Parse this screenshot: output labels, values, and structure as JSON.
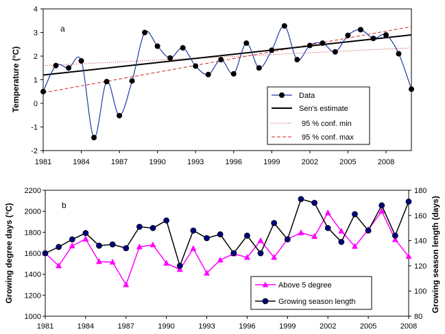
{
  "chart_data": [
    {
      "panel_label": "a",
      "type": "line",
      "ylabel": "Temperature (°C)",
      "xlim": [
        1981,
        2010
      ],
      "ylim": [
        -2,
        4
      ],
      "x_ticks": [
        1981,
        1984,
        1987,
        1990,
        1993,
        1996,
        1999,
        2002,
        2005,
        2008
      ],
      "y_ticks": [
        -2,
        -1,
        0,
        1,
        2,
        3,
        4
      ],
      "legend": "lower-right",
      "grid": false,
      "series": [
        {
          "name": "Data",
          "color": "#1f3a9e",
          "marker": "circle",
          "x": [
            1981,
            1982,
            1983,
            1984,
            1985,
            1986,
            1987,
            1988,
            1989,
            1990,
            1991,
            1992,
            1993,
            1994,
            1995,
            1996,
            1997,
            1998,
            1999,
            2000,
            2001,
            2002,
            2003,
            2004,
            2005,
            2006,
            2007,
            2008,
            2009,
            2010
          ],
          "y": [
            0.5,
            1.6,
            1.5,
            1.8,
            -1.45,
            0.92,
            -0.52,
            0.95,
            3.0,
            2.42,
            1.92,
            2.35,
            1.58,
            1.22,
            1.85,
            1.25,
            2.55,
            1.5,
            2.25,
            3.28,
            1.85,
            2.45,
            2.55,
            2.18,
            2.88,
            3.12,
            2.75,
            2.9,
            2.1,
            0.6
          ]
        },
        {
          "name": "Sen's estimate",
          "color": "#000000",
          "style": "solid",
          "x": [
            1981,
            2010
          ],
          "y": [
            1.2,
            2.9
          ]
        },
        {
          "name": "95 % conf. min",
          "color": "#cc2020",
          "style": "dotted",
          "x": [
            1981,
            2010
          ],
          "y": [
            1.6,
            2.35
          ]
        },
        {
          "name": "95 % conf. max",
          "color": "#cc2020",
          "style": "dashed",
          "x": [
            1981,
            2010
          ],
          "y": [
            0.45,
            3.25
          ]
        }
      ]
    },
    {
      "panel_label": "b",
      "type": "line",
      "ylabel": "Growing degree days (°C)",
      "y2label": "Growing season length (days)",
      "xlim": [
        1981,
        2008
      ],
      "ylim": [
        1000,
        2200
      ],
      "y2lim": [
        80,
        180
      ],
      "x_ticks": [
        1981,
        1984,
        1987,
        1990,
        1993,
        1996,
        1999,
        2002,
        2005,
        2008
      ],
      "y_ticks": [
        1000,
        1200,
        1400,
        1600,
        1800,
        2000,
        2200
      ],
      "y2_ticks": [
        80,
        100,
        120,
        140,
        160,
        180
      ],
      "legend": "lower-right",
      "grid": false,
      "series": [
        {
          "name": "Above 5 degree",
          "axis": "left",
          "color": "#ff00ff",
          "marker": "triangle",
          "x": [
            1981,
            1982,
            1983,
            1984,
            1985,
            1986,
            1987,
            1988,
            1989,
            1990,
            1991,
            1992,
            1993,
            1994,
            1995,
            1996,
            1997,
            1998,
            1999,
            2000,
            2001,
            2002,
            2003,
            2004,
            2005,
            2006,
            2007,
            2008
          ],
          "y": [
            1600,
            1480,
            1670,
            1735,
            1520,
            1515,
            1300,
            1660,
            1680,
            1505,
            1445,
            1645,
            1410,
            1535,
            1595,
            1560,
            1720,
            1560,
            1735,
            1795,
            1760,
            1985,
            1810,
            1665,
            1825,
            2000,
            1730,
            1570
          ]
        },
        {
          "name": "Growing season length",
          "axis": "right",
          "color": "#000080",
          "marker": "circle",
          "x": [
            1981,
            1982,
            1983,
            1984,
            1985,
            1986,
            1987,
            1988,
            1989,
            1990,
            1991,
            1992,
            1993,
            1994,
            1995,
            1996,
            1997,
            1998,
            1999,
            2000,
            2001,
            2002,
            2003,
            2004,
            2005,
            2006,
            2007,
            2008
          ],
          "y": [
            130,
            135,
            141,
            146,
            136,
            137,
            134,
            151,
            150,
            156,
            120,
            148,
            142,
            145,
            130,
            144,
            130,
            154,
            141,
            173,
            170,
            150,
            139,
            161,
            148,
            168,
            144,
            171
          ]
        }
      ]
    }
  ]
}
